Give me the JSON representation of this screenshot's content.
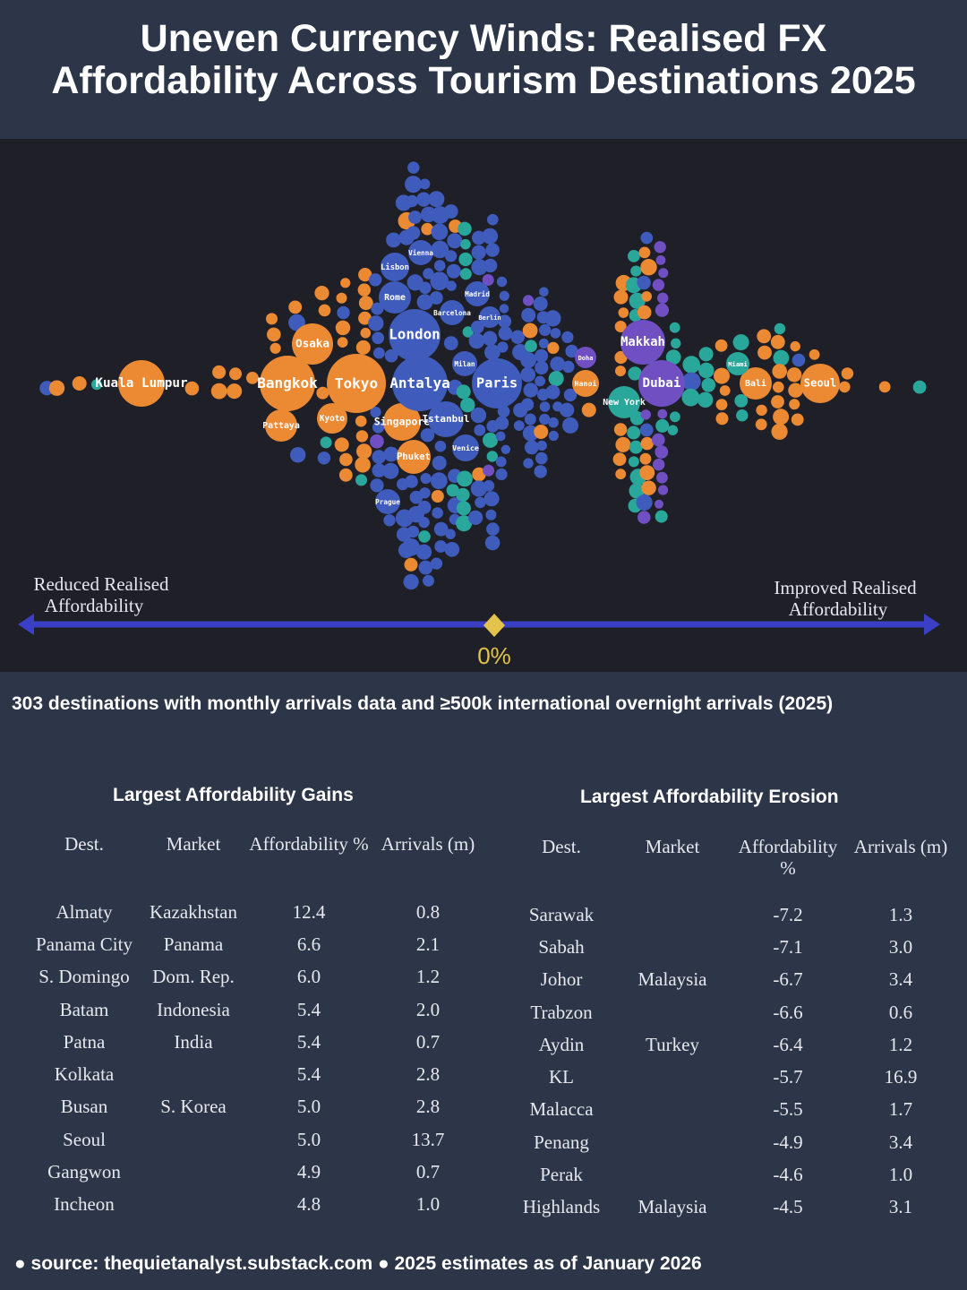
{
  "title_line1": "Uneven Currency Winds: Realised FX",
  "title_line2": "Affordability Across Tourism Destinations 2025",
  "chart_data": {
    "type": "scatter",
    "subtype": "beeswarm",
    "axis": {
      "left_label": [
        "Reduced Realised",
        "Affordability"
      ],
      "right_label": [
        "Improved Realised",
        "Affordability"
      ],
      "center_label": "0%"
    },
    "colors": {
      "orange": "#ec8a34",
      "blue": "#3f5cbc",
      "teal": "#2aa79b",
      "purple": "#6f4fc2",
      "axis": "#3a3fc6",
      "center": "#e3c34c"
    },
    "named_bubbles": [
      {
        "name": "Kuala Lumpur",
        "color": "orange"
      },
      {
        "name": "Bangkok",
        "color": "orange"
      },
      {
        "name": "Tokyo",
        "color": "orange"
      },
      {
        "name": "Osaka",
        "color": "orange"
      },
      {
        "name": "Pattaya",
        "color": "orange"
      },
      {
        "name": "Kyoto",
        "color": "orange"
      },
      {
        "name": "Phuket",
        "color": "orange"
      },
      {
        "name": "Singapore",
        "color": "orange"
      },
      {
        "name": "London",
        "color": "blue"
      },
      {
        "name": "Antalya",
        "color": "blue"
      },
      {
        "name": "Paris",
        "color": "blue"
      },
      {
        "name": "Istanbul",
        "color": "blue"
      },
      {
        "name": "Rome",
        "color": "blue"
      },
      {
        "name": "Lisbon",
        "color": "blue"
      },
      {
        "name": "Vienna",
        "color": "blue"
      },
      {
        "name": "Milan",
        "color": "blue"
      },
      {
        "name": "Madrid",
        "color": "blue"
      },
      {
        "name": "Venice",
        "color": "blue"
      },
      {
        "name": "Prague",
        "color": "blue"
      },
      {
        "name": "Makkah",
        "color": "purple"
      },
      {
        "name": "Dubai",
        "color": "purple"
      },
      {
        "name": "New York",
        "color": "teal"
      },
      {
        "name": "Bali",
        "color": "orange"
      },
      {
        "name": "Seoul",
        "color": "orange"
      },
      {
        "name": "Miami",
        "color": "teal"
      },
      {
        "name": "Hanoi",
        "color": "orange"
      },
      {
        "name": "Doha",
        "color": "purple"
      },
      {
        "name": "Barcelona",
        "color": "blue"
      },
      {
        "name": "Berlin",
        "color": "blue"
      }
    ]
  },
  "subtitle": "303 destinations with monthly arrivals data and ≥500k international overnight arrivals (2025)",
  "gains": {
    "title": "Largest Affordability Gains",
    "headers": [
      "Dest.",
      "Market",
      "Affordability %",
      "Arrivals (m)"
    ],
    "rows": [
      [
        "Almaty",
        "Kazakhstan",
        "12.4",
        "0.8"
      ],
      [
        "Panama City",
        "Panama",
        "6.6",
        "2.1"
      ],
      [
        "S. Domingo",
        "Dom. Rep.",
        "6.0",
        "1.2"
      ],
      [
        "Batam",
        "Indonesia",
        "5.4",
        "2.0"
      ],
      [
        "Patna",
        "India",
        "5.4",
        "0.7"
      ],
      [
        "Kolkata",
        "",
        "5.4",
        "2.8"
      ],
      [
        "Busan",
        "S. Korea",
        "5.0",
        "2.8"
      ],
      [
        "Seoul",
        "",
        "5.0",
        "13.7"
      ],
      [
        "Gangwon",
        "",
        "4.9",
        "0.7"
      ],
      [
        "Incheon",
        "",
        "4.8",
        "1.0"
      ]
    ]
  },
  "erosion": {
    "title": "Largest Affordability  Erosion",
    "headers": [
      "Dest.",
      "Market",
      "Affordability %",
      "Arrivals (m)"
    ],
    "rows": [
      [
        "Sarawak",
        "",
        "-7.2",
        "1.3"
      ],
      [
        "Sabah",
        "",
        "-7.1",
        "3.0"
      ],
      [
        "Johor",
        "Malaysia",
        "-6.7",
        "3.4"
      ],
      [
        "Trabzon",
        "",
        "-6.6",
        "0.6"
      ],
      [
        "Aydin",
        "Turkey",
        "-6.4",
        "1.2"
      ],
      [
        "KL",
        "",
        "-5.7",
        "16.9"
      ],
      [
        "Malacca",
        "",
        "-5.5",
        "1.7"
      ],
      [
        "Penang",
        "",
        "-4.9",
        "3.4"
      ],
      [
        "Perak",
        "",
        "-4.6",
        "1.0"
      ],
      [
        "Highlands",
        "Malaysia",
        "-4.5",
        "3.1"
      ]
    ]
  },
  "footer": "● source: thequietanalyst.substack.com ● 2025 estimates as of January 2026"
}
